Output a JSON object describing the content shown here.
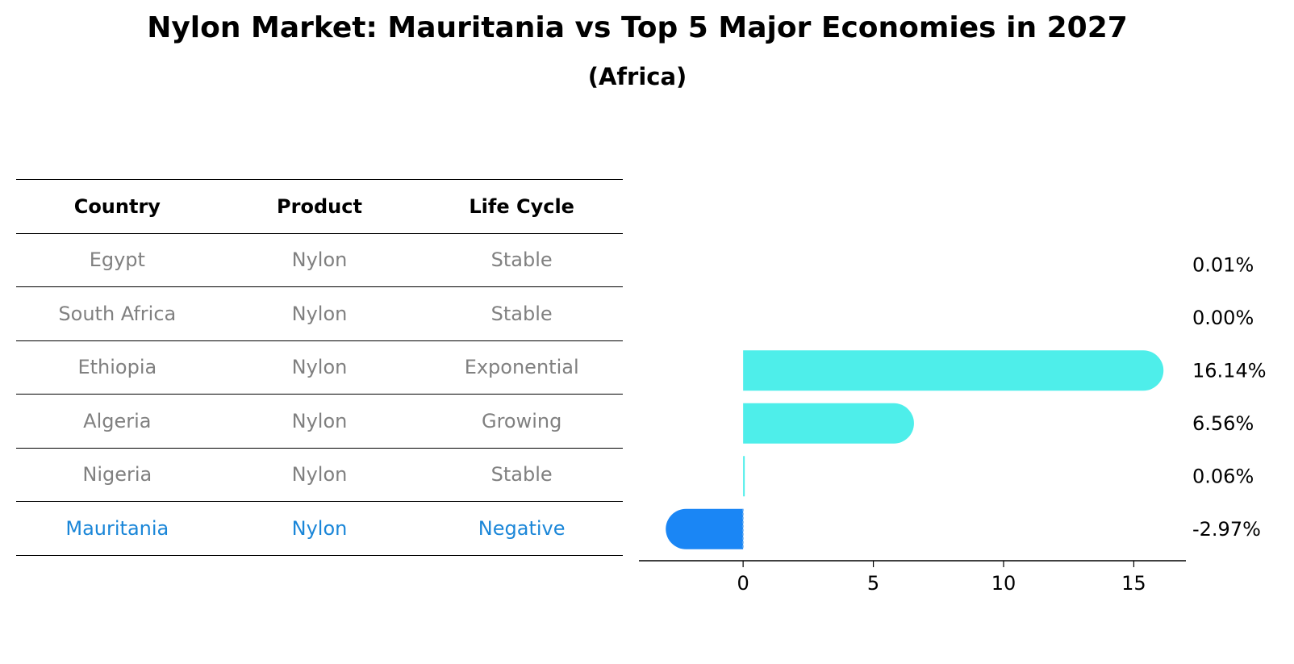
{
  "title": "Nylon Market: Mauritania vs Top 5 Major Economies in 2027",
  "subtitle": "(Africa)",
  "table": {
    "headers": [
      "Country",
      "Product",
      "Life Cycle"
    ],
    "rows": [
      {
        "country": "Egypt",
        "product": "Nylon",
        "life_cycle": "Stable"
      },
      {
        "country": "South Africa",
        "product": "Nylon",
        "life_cycle": "Stable"
      },
      {
        "country": "Ethiopia",
        "product": "Nylon",
        "life_cycle": "Exponential"
      },
      {
        "country": "Algeria",
        "product": "Nylon",
        "life_cycle": "Growing"
      },
      {
        "country": "Nigeria",
        "product": "Nylon",
        "life_cycle": "Stable"
      },
      {
        "country": "Mauritania",
        "product": "Nylon",
        "life_cycle": "Negative"
      }
    ],
    "highlight_country": "Mauritania",
    "highlight_color": "#1a86d8",
    "text_color": "#808080"
  },
  "chart_data": {
    "type": "bar",
    "orientation": "horizontal",
    "categories": [
      "Egypt",
      "South Africa",
      "Ethiopia",
      "Algeria",
      "Nigeria",
      "Mauritania"
    ],
    "values": [
      0.01,
      0.0,
      16.14,
      6.56,
      0.06,
      -2.97
    ],
    "value_labels": [
      "0.01%",
      "0.00%",
      "16.14%",
      "6.56%",
      "0.06%",
      "-2.97%"
    ],
    "xlim": [
      -4,
      17
    ],
    "xticks": [
      0,
      5,
      10,
      15
    ],
    "positive_color": "#4eeeea",
    "negative_color": "#1a86f5",
    "grid": false,
    "title": "",
    "xlabel": "",
    "ylabel": ""
  }
}
